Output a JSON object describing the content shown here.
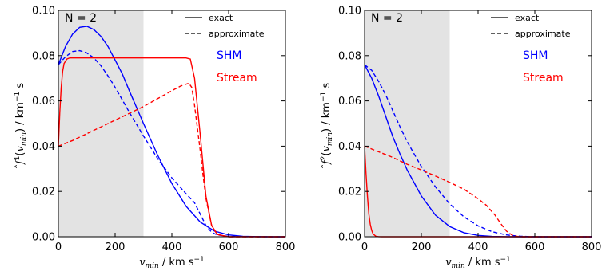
{
  "chart_data": [
    {
      "type": "line",
      "panel_label": "N = 2",
      "xlabel": "v_min / km s^-1",
      "ylabel": "f^1(v_min) / km^-1 s",
      "xlim": [
        0,
        800
      ],
      "ylim": [
        0,
        0.1
      ],
      "x_ticks": [
        0,
        200,
        400,
        600,
        800
      ],
      "y_ticks": [
        0.0,
        0.02,
        0.04,
        0.06,
        0.08,
        0.1
      ],
      "shaded_region": [
        0,
        300
      ],
      "grid": false,
      "legend": {
        "placement": "top-right",
        "entries": [
          {
            "label": "exact",
            "style": "solid"
          },
          {
            "label": "approximate",
            "style": "dashed"
          }
        ]
      },
      "annotations": [
        {
          "text": "SHM",
          "color": "#0000ff"
        },
        {
          "text": "Stream",
          "color": "#ff0000"
        }
      ],
      "series": [
        {
          "group": "SHM",
          "style": "solid",
          "color": "#0000ff",
          "x": [
            0,
            25,
            50,
            75,
            100,
            125,
            150,
            175,
            200,
            225,
            250,
            300,
            350,
            400,
            450,
            500,
            550,
            600,
            650,
            700,
            750,
            800
          ],
          "y": [
            0.076,
            0.084,
            0.0895,
            0.0925,
            0.093,
            0.0915,
            0.0885,
            0.084,
            0.078,
            0.072,
            0.0645,
            0.05,
            0.036,
            0.0235,
            0.0135,
            0.0065,
            0.0025,
            0.0008,
            0.0002,
            5e-05,
            0.0,
            0.0
          ]
        },
        {
          "group": "SHM",
          "style": "dashed",
          "color": "#0000ff",
          "x": [
            0,
            25,
            50,
            75,
            100,
            125,
            150,
            175,
            200,
            250,
            300,
            350,
            400,
            450,
            480,
            500,
            520,
            540,
            560,
            600,
            650,
            700,
            800
          ],
          "y": [
            0.076,
            0.0795,
            0.0818,
            0.0822,
            0.0812,
            0.079,
            0.0755,
            0.071,
            0.066,
            0.055,
            0.0445,
            0.0345,
            0.026,
            0.019,
            0.015,
            0.01,
            0.005,
            0.002,
            0.0008,
            0.0002,
            5e-05,
            0.0,
            0.0
          ]
        },
        {
          "group": "Stream",
          "style": "solid",
          "color": "#ff0000",
          "x": [
            0,
            5,
            10,
            15,
            20,
            30,
            40,
            60,
            80,
            100,
            200,
            300,
            400,
            450,
            465,
            480,
            500,
            520,
            540,
            560,
            600,
            800
          ],
          "y": [
            0.04,
            0.055,
            0.066,
            0.073,
            0.0765,
            0.0785,
            0.079,
            0.079,
            0.079,
            0.079,
            0.079,
            0.079,
            0.079,
            0.079,
            0.0785,
            0.07,
            0.045,
            0.018,
            0.005,
            0.001,
            0.0,
            0.0
          ]
        },
        {
          "group": "Stream",
          "style": "dashed",
          "color": "#ff0000",
          "x": [
            0,
            50,
            100,
            150,
            200,
            250,
            300,
            350,
            400,
            430,
            460,
            470,
            480,
            490,
            500,
            510,
            520,
            540,
            560,
            600,
            800
          ],
          "y": [
            0.04,
            0.0425,
            0.0455,
            0.0485,
            0.0515,
            0.0545,
            0.0575,
            0.061,
            0.0645,
            0.0665,
            0.0678,
            0.066,
            0.058,
            0.048,
            0.038,
            0.027,
            0.017,
            0.005,
            0.001,
            0.0,
            0.0
          ]
        }
      ]
    },
    {
      "type": "line",
      "panel_label": "N = 2",
      "xlabel": "v_min / km s^-1",
      "ylabel": "f^2(v_min) / km^-1 s",
      "xlim": [
        0,
        800
      ],
      "ylim": [
        0,
        0.1
      ],
      "x_ticks": [
        0,
        200,
        400,
        600,
        800
      ],
      "y_ticks": [
        0.0,
        0.02,
        0.04,
        0.06,
        0.08,
        0.1
      ],
      "shaded_region": [
        0,
        300
      ],
      "grid": false,
      "legend": {
        "placement": "top-right",
        "entries": [
          {
            "label": "exact",
            "style": "solid"
          },
          {
            "label": "approximate",
            "style": "dashed"
          }
        ]
      },
      "annotations": [
        {
          "text": "SHM",
          "color": "#0000ff"
        },
        {
          "text": "Stream",
          "color": "#ff0000"
        }
      ],
      "series": [
        {
          "group": "SHM",
          "style": "solid",
          "color": "#0000ff",
          "x": [
            0,
            25,
            50,
            75,
            100,
            125,
            150,
            200,
            250,
            300,
            350,
            400,
            450,
            500,
            550,
            600,
            800
          ],
          "y": [
            0.076,
            0.07,
            0.062,
            0.053,
            0.044,
            0.0365,
            0.0295,
            0.018,
            0.0095,
            0.0045,
            0.0018,
            0.0006,
            0.00015,
            3e-05,
            0.0,
            0.0,
            0.0
          ]
        },
        {
          "group": "SHM",
          "style": "dashed",
          "color": "#0000ff",
          "x": [
            0,
            25,
            50,
            75,
            100,
            125,
            150,
            200,
            250,
            300,
            350,
            400,
            450,
            500,
            550,
            600,
            800
          ],
          "y": [
            0.076,
            0.0735,
            0.0685,
            0.0625,
            0.0555,
            0.0485,
            0.042,
            0.031,
            0.022,
            0.0145,
            0.0088,
            0.0048,
            0.0022,
            0.0008,
            0.0002,
            0.0,
            0.0
          ]
        },
        {
          "group": "Stream",
          "style": "solid",
          "color": "#ff0000",
          "x": [
            0,
            5,
            10,
            15,
            20,
            25,
            30,
            40,
            50,
            60,
            800
          ],
          "y": [
            0.04,
            0.028,
            0.018,
            0.01,
            0.0055,
            0.0028,
            0.0012,
            0.0002,
            3e-05,
            0.0,
            0.0
          ]
        },
        {
          "group": "Stream",
          "style": "dashed",
          "color": "#ff0000",
          "x": [
            0,
            50,
            100,
            150,
            200,
            250,
            300,
            350,
            400,
            430,
            460,
            480,
            500,
            520,
            540,
            560,
            800
          ],
          "y": [
            0.04,
            0.0375,
            0.035,
            0.032,
            0.0295,
            0.0268,
            0.024,
            0.021,
            0.0168,
            0.0138,
            0.0095,
            0.0058,
            0.0025,
            0.0007,
            0.0001,
            0.0,
            0.0
          ]
        }
      ]
    }
  ]
}
